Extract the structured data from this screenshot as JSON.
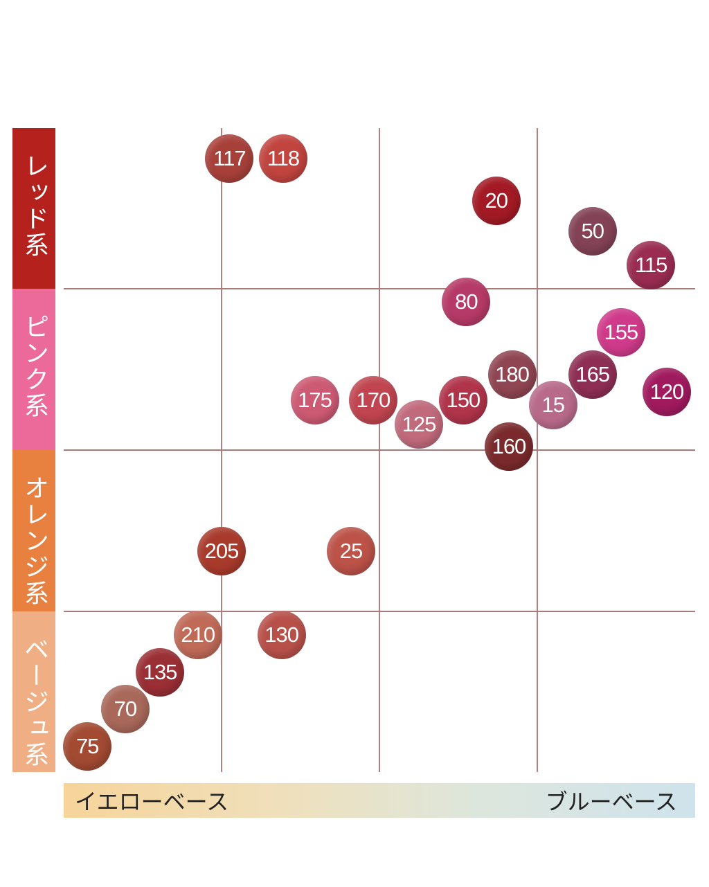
{
  "chart_data": {
    "type": "scatter",
    "title": "",
    "xlabel": "",
    "ylabel": "",
    "xlim": [
      0,
      4
    ],
    "ylim": [
      0,
      4
    ],
    "grid": true,
    "x_axis": {
      "left_label": "イエローベース",
      "right_label": "ブルーベース"
    },
    "categories": [
      {
        "label": "レッド系",
        "color": "#b5211d"
      },
      {
        "label": "ピンク系",
        "color": "#ec6a9a"
      },
      {
        "label": "オレンジ系",
        "color": "#e8803f"
      },
      {
        "label": "ベージュ系",
        "color": "#efae84"
      }
    ],
    "points": [
      {
        "label": "117",
        "x": 1.05,
        "y": 3.81,
        "color": "#a8403a"
      },
      {
        "label": "118",
        "x": 1.39,
        "y": 3.81,
        "color": "#c2443f"
      },
      {
        "label": "20",
        "x": 2.74,
        "y": 3.55,
        "color": "#a31a25"
      },
      {
        "label": "50",
        "x": 3.35,
        "y": 3.36,
        "color": "#834256"
      },
      {
        "label": "115",
        "x": 3.72,
        "y": 3.15,
        "color": "#9a2c52"
      },
      {
        "label": "80",
        "x": 2.55,
        "y": 2.92,
        "color": "#b63a67"
      },
      {
        "label": "155",
        "x": 3.53,
        "y": 2.73,
        "color": "#cf3a8a"
      },
      {
        "label": "180",
        "x": 2.84,
        "y": 2.47,
        "color": "#8f4552"
      },
      {
        "label": "165",
        "x": 3.35,
        "y": 2.47,
        "color": "#8e2e54"
      },
      {
        "label": "120",
        "x": 3.82,
        "y": 2.36,
        "color": "#a01a5e"
      },
      {
        "label": "175",
        "x": 1.59,
        "y": 2.31,
        "color": "#cc5a73"
      },
      {
        "label": "170",
        "x": 1.96,
        "y": 2.31,
        "color": "#c04550"
      },
      {
        "label": "150",
        "x": 2.53,
        "y": 2.31,
        "color": "#b0344a"
      },
      {
        "label": "15",
        "x": 3.1,
        "y": 2.28,
        "color": "#b86a8a"
      },
      {
        "label": "125",
        "x": 2.25,
        "y": 2.16,
        "color": "#c06a7c"
      },
      {
        "label": "160",
        "x": 2.82,
        "y": 2.02,
        "color": "#7a2a2c"
      },
      {
        "label": "205",
        "x": 1.0,
        "y": 1.37,
        "color": "#a83a2c"
      },
      {
        "label": "25",
        "x": 1.82,
        "y": 1.37,
        "color": "#bc5248"
      },
      {
        "label": "210",
        "x": 0.85,
        "y": 0.85,
        "color": "#c06a58"
      },
      {
        "label": "130",
        "x": 1.38,
        "y": 0.85,
        "color": "#b8504a"
      },
      {
        "label": "135",
        "x": 0.61,
        "y": 0.62,
        "color": "#9a2f35"
      },
      {
        "label": "70",
        "x": 0.39,
        "y": 0.39,
        "color": "#a8685a"
      },
      {
        "label": "75",
        "x": 0.15,
        "y": 0.16,
        "color": "#a24a32"
      }
    ]
  }
}
